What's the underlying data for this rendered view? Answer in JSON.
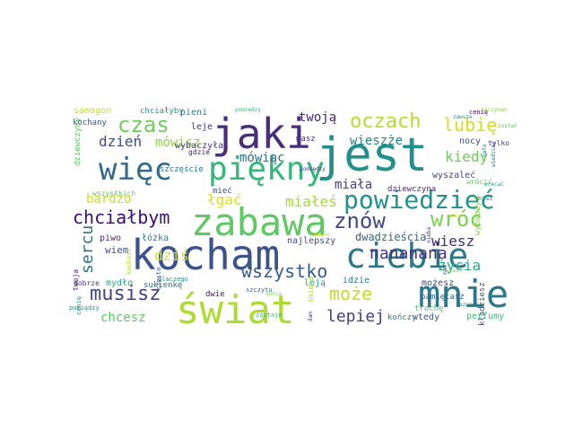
{
  "words": [
    {
      "text": "jest",
      "color": "#21908d"
    },
    {
      "text": "zabawa",
      "color": "#5ec962"
    },
    {
      "text": "kocham",
      "color": "#3b528b"
    },
    {
      "text": "świat",
      "color": "#addc30"
    },
    {
      "text": "mnie",
      "color": "#2a788e"
    },
    {
      "text": "piękny",
      "color": "#35b779"
    },
    {
      "text": "jaki",
      "color": "#472d7b"
    },
    {
      "text": "ciebie",
      "color": "#2a788e"
    },
    {
      "text": "więc",
      "color": "#31688e"
    },
    {
      "text": "powiedzieć",
      "color": "#21918c"
    },
    {
      "text": "chciałbym",
      "color": "#3b0f70"
    },
    {
      "text": "oczach",
      "color": "#b5de2b"
    },
    {
      "text": "czas",
      "color": "#6ece58"
    },
    {
      "text": "znów",
      "color": "#3e4989"
    },
    {
      "text": "wróć",
      "color": "#7ad151"
    },
    {
      "text": "lubię",
      "color": "#d0e11c"
    },
    {
      "text": "musisz",
      "color": "#414487"
    },
    {
      "text": "może",
      "color": "#c2df23"
    },
    {
      "text": "lepiej",
      "color": "#424086"
    },
    {
      "text": "nananana",
      "color": "#46327e"
    },
    {
      "text": "wszystko",
      "color": "#365c8d"
    },
    {
      "text": "sercu",
      "color": "#2c728e"
    },
    {
      "text": "dzień",
      "color": "#3e4a89"
    },
    {
      "text": "mówisz",
      "color": "#90d743"
    },
    {
      "text": "wieszże",
      "color": "#26828e"
    },
    {
      "text": "kiedy",
      "color": "#6ccd5a"
    },
    {
      "text": "twoją",
      "color": "#482475"
    },
    {
      "text": "miała",
      "color": "#414487"
    },
    {
      "text": "bardzo",
      "color": "#c8e020"
    },
    {
      "text": "łgać",
      "color": "#d8e219"
    },
    {
      "text": "miałeś",
      "color": "#a5db36"
    },
    {
      "text": "mówiąc",
      "color": "#2e6e8e"
    },
    {
      "text": "wiesz",
      "color": "#482777"
    },
    {
      "text": "życia",
      "color": "#27ad81"
    },
    {
      "text": "chcesz",
      "color": "#5cc863"
    },
    {
      "text": "dziś",
      "color": "#d5e21a"
    },
    {
      "text": "dwadzieścia",
      "color": "#32658e"
    },
    {
      "text": "wyszaleć",
      "color": "#3f4788"
    },
    {
      "text": "samogon",
      "color": "#c5e021"
    },
    {
      "text": "chciałyby",
      "color": "#1f958b"
    },
    {
      "text": "pieni",
      "color": "#29798e"
    },
    {
      "text": "kochany",
      "color": "#3b528b"
    },
    {
      "text": "leje",
      "color": "#46307e"
    },
    {
      "text": "wybaczyła",
      "color": "#453781"
    },
    {
      "text": "szczęście",
      "color": "#2c728e"
    },
    {
      "text": "masz",
      "color": "#472f7d"
    },
    {
      "text": "nocy",
      "color": "#3b528b"
    },
    {
      "text": "tylko",
      "color": "#453882"
    },
    {
      "text": "idzie",
      "color": "#2a768e"
    },
    {
      "text": "dziewczyna",
      "color": "#472a7a"
    },
    {
      "text": "trochę",
      "color": "#4ac16d"
    },
    {
      "text": "mydło",
      "color": "#22a785"
    },
    {
      "text": "wiem",
      "color": "#3c4f8a"
    },
    {
      "text": "piwo",
      "color": "#482979"
    },
    {
      "text": "łóżka",
      "color": "#29798e"
    },
    {
      "text": "najlepszy",
      "color": "#3e4c8a"
    },
    {
      "text": "leją",
      "color": "#1fa188"
    },
    {
      "text": "możesz",
      "color": "#3f4889"
    },
    {
      "text": "pamiętasz",
      "color": "#355f8d"
    },
    {
      "text": "kończy",
      "color": "#26828e"
    },
    {
      "text": "wtedy",
      "color": "#39558c"
    },
    {
      "text": "perfumy",
      "color": "#3aba76"
    },
    {
      "text": "sukienkę",
      "color": "#2f6c8e"
    },
    {
      "text": "dobrze",
      "color": "#443983"
    },
    {
      "text": "gdzie",
      "color": "#48186a"
    },
    {
      "text": "mieć",
      "color": "#3d4e8a"
    },
    {
      "text": "dwie",
      "color": "#48186a"
    },
    {
      "text": "twoja",
      "color": "#482475"
    },
    {
      "text": "cenię",
      "color": "#20928c"
    },
    {
      "text": "kładziesz",
      "color": "#3b528b"
    },
    {
      "text": "wybaczyć",
      "color": "#8bd646"
    },
    {
      "text": "wrócić",
      "color": "#5ec962"
    },
    {
      "text": "dziewczyny",
      "color": "#5ec962"
    },
    {
      "text": "wszystkich",
      "color": "#5ec962"
    },
    {
      "text": "śmieją",
      "color": "#a8db34"
    },
    {
      "text": "szczytu",
      "color": "#31688e"
    },
    {
      "text": "zostaje",
      "color": "#35b779"
    },
    {
      "text": "kochasz",
      "color": "#b5de2b"
    },
    {
      "text": "pomiędzy",
      "color": "#21918c"
    },
    {
      "text": "dlaczego",
      "color": "#21918c"
    },
    {
      "text": "często",
      "color": "#3b528b"
    },
    {
      "text": "serca",
      "color": "#7ad151"
    },
    {
      "text": "dawno",
      "color": "#c2df23"
    },
    {
      "text": "szansę",
      "color": "#2a788e"
    },
    {
      "text": "pomiędzy",
      "color": "#35b779"
    },
    {
      "text": "pomiędzy",
      "color": "#443983"
    },
    {
      "text": "drzwi",
      "color": "#2c728e"
    },
    {
      "text": "ręce",
      "color": "#d8e219"
    },
    {
      "text": "nieba",
      "color": "#46327e"
    },
    {
      "text": "wracać",
      "color": "#20a486"
    },
    {
      "text": "zaczynam",
      "color": "#90d743"
    },
    {
      "text": "cenię",
      "color": "#440154"
    },
    {
      "text": "zawsze",
      "color": "#20928c"
    },
    {
      "text": "zostań",
      "color": "#5cc863"
    },
    {
      "text": "mało",
      "color": "#26828e"
    },
    {
      "text": "wiedzieć",
      "color": "#31688e"
    },
    {
      "text": "mam",
      "color": "#3b528b"
    },
    {
      "text": "wiatr",
      "color": "#6ccd5a"
    },
    {
      "text": "dam",
      "color": "#472d7b"
    }
  ]
}
